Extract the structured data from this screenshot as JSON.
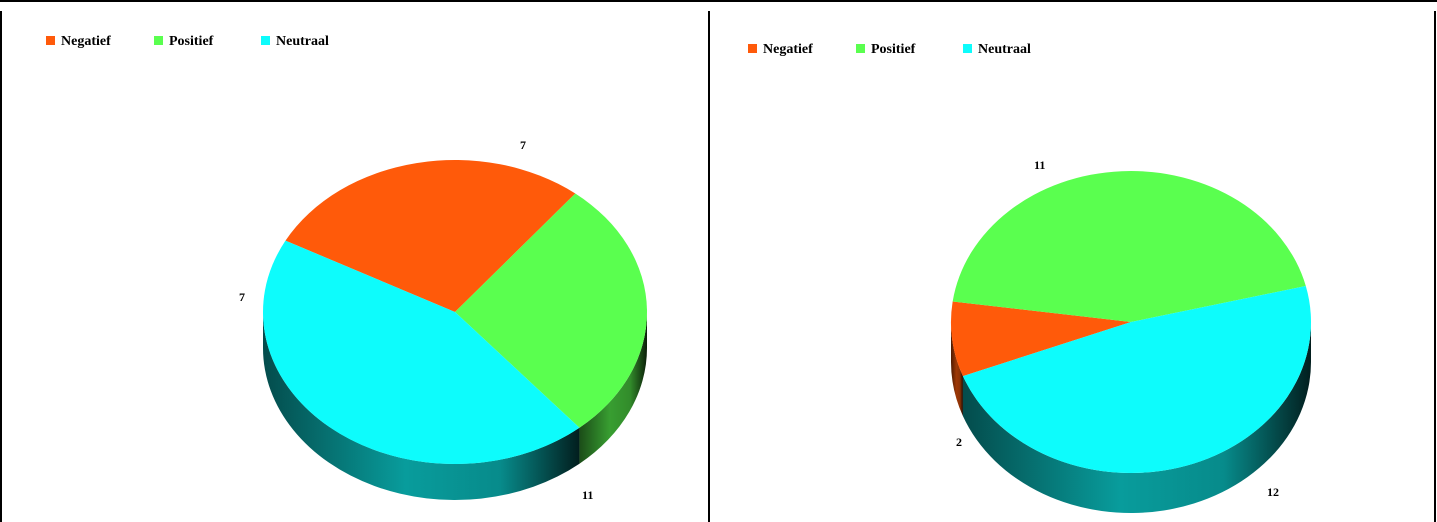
{
  "chart_data": [
    {
      "type": "pie",
      "categories": [
        "Negatief",
        "Positief",
        "Neutraal"
      ],
      "values": [
        7,
        7,
        11
      ],
      "legend": {
        "placement": "top-left",
        "items": [
          "Negatief",
          "Positief",
          "Neutraal"
        ]
      },
      "data_labels": [
        "7",
        "7",
        "11"
      ],
      "colors": {
        "Negatief": "#ff5a0a",
        "Positief": "#5aff4f",
        "Neutraal": "#0dfcfc"
      },
      "style": "3d"
    },
    {
      "type": "pie",
      "categories": [
        "Negatief",
        "Positief",
        "Neutraal"
      ],
      "values": [
        2,
        11,
        12
      ],
      "legend": {
        "placement": "top-left",
        "items": [
          "Negatief",
          "Positief",
          "Neutraal"
        ]
      },
      "data_labels": [
        "2",
        "11",
        "12"
      ],
      "colors": {
        "Negatief": "#ff5a0a",
        "Positief": "#5aff4f",
        "Neutraal": "#0dfcfc"
      },
      "style": "3d"
    }
  ]
}
